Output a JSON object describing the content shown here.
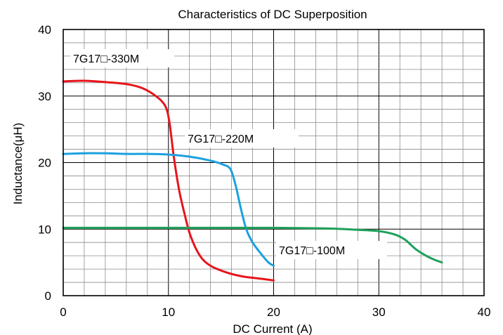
{
  "chart_data": {
    "type": "line",
    "title": "Characteristics of DC Superposition",
    "xlabel": "DC Current (A)",
    "ylabel": "Inductance(μH)",
    "xlim": [
      0,
      40
    ],
    "ylim": [
      0,
      40
    ],
    "x_ticks": [
      0,
      10,
      20,
      30,
      40
    ],
    "y_ticks": [
      0,
      10,
      20,
      30,
      40
    ],
    "grid": true,
    "minor_grid_step": 2,
    "series": [
      {
        "name": "7G17□-330M",
        "color": "#e8141b",
        "points": [
          [
            0,
            32.2
          ],
          [
            2,
            32.3
          ],
          [
            4,
            32.1
          ],
          [
            6,
            31.8
          ],
          [
            7.5,
            31.2
          ],
          [
            8.8,
            30.0
          ],
          [
            9.7,
            28.5
          ],
          [
            10.1,
            26.0
          ],
          [
            10.5,
            21.0
          ],
          [
            11.0,
            16.0
          ],
          [
            11.5,
            12.5
          ],
          [
            12.1,
            9.0
          ],
          [
            13.0,
            6.0
          ],
          [
            14.0,
            4.5
          ],
          [
            15.5,
            3.5
          ],
          [
            17.0,
            2.9
          ],
          [
            18.5,
            2.6
          ],
          [
            20.0,
            2.3
          ]
        ]
      },
      {
        "name": "7G17□-220M",
        "color": "#1ba1de",
        "points": [
          [
            0,
            21.3
          ],
          [
            2,
            21.4
          ],
          [
            4,
            21.4
          ],
          [
            6,
            21.3
          ],
          [
            8,
            21.3
          ],
          [
            10,
            21.2
          ],
          [
            12,
            20.9
          ],
          [
            14,
            20.3
          ],
          [
            15.2,
            19.7
          ],
          [
            15.9,
            19.0
          ],
          [
            16.4,
            16.5
          ],
          [
            16.9,
            13.0
          ],
          [
            17.4,
            10.0
          ],
          [
            18.0,
            8.0
          ],
          [
            18.8,
            6.3
          ],
          [
            19.5,
            5.0
          ],
          [
            20.0,
            4.5
          ]
        ]
      },
      {
        "name": "7G17□-100M",
        "color": "#1fa05a",
        "points": [
          [
            0,
            10.2
          ],
          [
            5,
            10.2
          ],
          [
            10,
            10.2
          ],
          [
            15,
            10.2
          ],
          [
            20,
            10.2
          ],
          [
            25,
            10.1
          ],
          [
            28,
            9.9
          ],
          [
            30,
            9.7
          ],
          [
            31.5,
            9.2
          ],
          [
            32.5,
            8.4
          ],
          [
            33.5,
            7.0
          ],
          [
            34.5,
            6.0
          ],
          [
            35.3,
            5.4
          ],
          [
            36.0,
            5.0
          ]
        ]
      }
    ]
  }
}
